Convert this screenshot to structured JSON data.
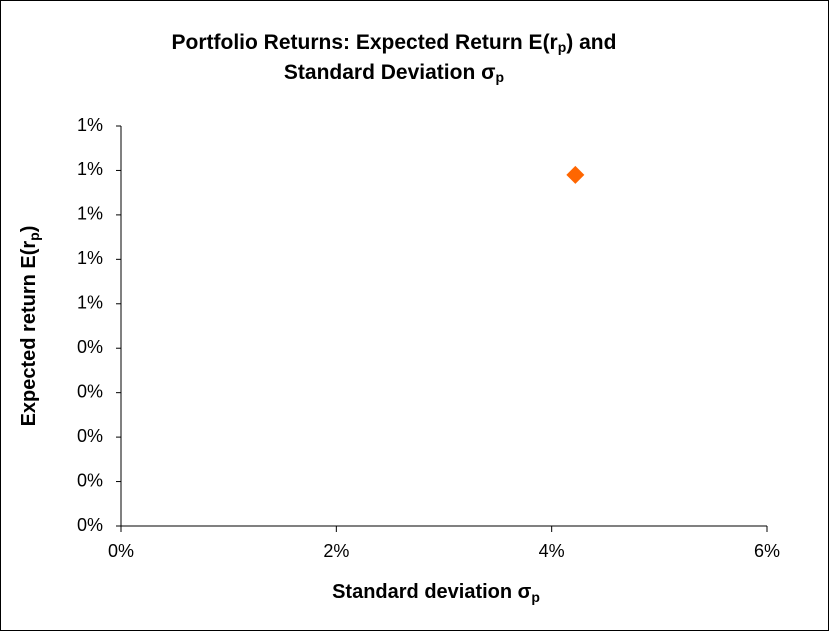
{
  "chart_data": {
    "type": "scatter",
    "title": [
      [
        "Portfolio Returns:  Expected Return E(r",
        "p",
        ")  and"
      ],
      [
        "Standard Deviation σ",
        "p"
      ]
    ],
    "x_label": [
      "Standard deviation σ",
      "p"
    ],
    "y_label": [
      "Expected return E(r",
      "p",
      ")"
    ],
    "series": [
      {
        "color": "#ff6600",
        "marker": "diamond",
        "x": [
          4.22
        ],
        "values": [
          0.79
        ]
      }
    ],
    "xlim": [
      0,
      6
    ],
    "xticks": [
      {
        "value": 0,
        "label": "0%"
      },
      {
        "value": 2,
        "label": "2%"
      },
      {
        "value": 4,
        "label": "4%"
      },
      {
        "value": 6,
        "label": "6%"
      }
    ],
    "ylim": [
      0,
      0.9
    ],
    "yticks": [
      {
        "value": 0,
        "label": "0%"
      },
      {
        "value": 0.1,
        "label": "0%"
      },
      {
        "value": 0.2,
        "label": "0%"
      },
      {
        "value": 0.3,
        "label": "0%"
      },
      {
        "value": 0.4,
        "label": "0%"
      },
      {
        "value": 0.5,
        "label": "1%"
      },
      {
        "value": 0.6,
        "label": "1%"
      },
      {
        "value": 0.7,
        "label": "1%"
      },
      {
        "value": 0.8,
        "label": "1%"
      },
      {
        "value": 0.9,
        "label": "1%"
      }
    ],
    "grid": false
  }
}
